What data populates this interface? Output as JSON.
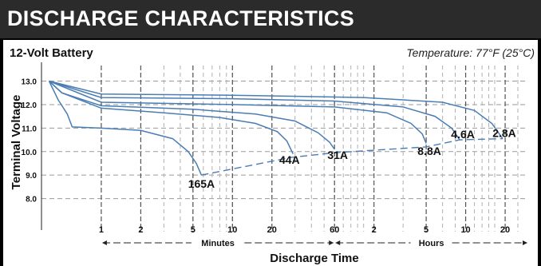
{
  "header": {
    "title": "DISCHARGE CHARACTERISTICS"
  },
  "chart_data": {
    "type": "line",
    "title": "12-Volt Battery",
    "subtitle": "Temperature: 77°F (25°C)",
    "xlabel": "Discharge Time",
    "ylabel": "Terminal Voltage",
    "x_scale": "log",
    "x_unit": "minutes",
    "xlim": [
      0.35,
      1800
    ],
    "ylim": [
      7.0,
      13.8
    ],
    "y_ticks": [
      "13.0",
      "12.0",
      "11.0",
      "10.0",
      "9.0",
      "8.0"
    ],
    "x_tick_groups": [
      {
        "label": "Minutes",
        "ticks": [
          {
            "label": "1",
            "minutes": 1
          },
          {
            "label": "2",
            "minutes": 2
          },
          {
            "label": "5",
            "minutes": 5
          },
          {
            "label": "10",
            "minutes": 10
          },
          {
            "label": "20",
            "minutes": 20
          }
        ]
      },
      {
        "label": "Hours",
        "ticks": [
          {
            "label": "60",
            "minutes": 60
          },
          {
            "label": "2",
            "minutes": 120
          },
          {
            "label": "5",
            "minutes": 300
          },
          {
            "label": "10",
            "minutes": 600
          },
          {
            "label": "20",
            "minutes": 1200
          }
        ]
      }
    ],
    "grid": true,
    "series": [
      {
        "name": "165A",
        "points": [
          [
            0.4,
            13.0
          ],
          [
            0.47,
            12.2
          ],
          [
            0.55,
            11.6
          ],
          [
            0.6,
            11.05
          ],
          [
            1,
            11.0
          ],
          [
            2,
            10.9
          ],
          [
            3.5,
            10.55
          ],
          [
            4.6,
            10.0
          ],
          [
            5.3,
            9.5
          ],
          [
            5.8,
            9.0
          ]
        ]
      },
      {
        "name": "44A",
        "points": [
          [
            0.4,
            13.0
          ],
          [
            0.5,
            12.5
          ],
          [
            1,
            11.85
          ],
          [
            3,
            11.65
          ],
          [
            8,
            11.45
          ],
          [
            15,
            11.2
          ],
          [
            22,
            10.85
          ],
          [
            26,
            10.45
          ],
          [
            29,
            9.9
          ]
        ]
      },
      {
        "name": "31A",
        "points": [
          [
            0.4,
            13.0
          ],
          [
            0.5,
            12.5
          ],
          [
            1,
            11.95
          ],
          [
            5,
            11.8
          ],
          [
            15,
            11.6
          ],
          [
            30,
            11.3
          ],
          [
            45,
            10.8
          ],
          [
            55,
            10.4
          ],
          [
            60,
            10.1
          ]
        ]
      },
      {
        "name": "8.8A",
        "points": [
          [
            0.4,
            13.0
          ],
          [
            1,
            12.1
          ],
          [
            10,
            12.0
          ],
          [
            60,
            11.9
          ],
          [
            150,
            11.65
          ],
          [
            230,
            11.2
          ],
          [
            280,
            10.75
          ],
          [
            300,
            10.35
          ]
        ]
      },
      {
        "name": "4.6A",
        "points": [
          [
            0.4,
            13.0
          ],
          [
            1,
            12.3
          ],
          [
            10,
            12.25
          ],
          [
            60,
            12.15
          ],
          [
            200,
            11.9
          ],
          [
            350,
            11.5
          ],
          [
            470,
            11.0
          ],
          [
            540,
            10.5
          ]
        ]
      },
      {
        "name": "2.8A",
        "points": [
          [
            0.4,
            13.0
          ],
          [
            1,
            12.45
          ],
          [
            10,
            12.4
          ],
          [
            100,
            12.3
          ],
          [
            400,
            12.1
          ],
          [
            700,
            11.75
          ],
          [
            950,
            11.2
          ],
          [
            1150,
            10.55
          ]
        ]
      }
    ],
    "end_voltage_points": [
      [
        5.8,
        9.0
      ],
      [
        28,
        9.75
      ],
      [
        60,
        9.95
      ],
      [
        300,
        10.2
      ],
      [
        540,
        10.5
      ],
      [
        1150,
        10.55
      ]
    ],
    "label_positions_text": [
      "165A",
      "44A",
      "31A",
      "8.8A",
      "4.6A",
      "2.8A"
    ]
  }
}
